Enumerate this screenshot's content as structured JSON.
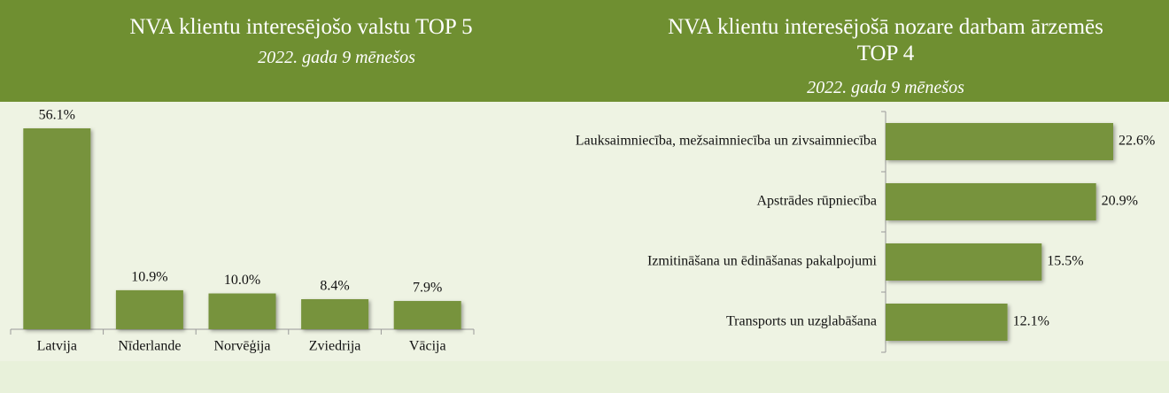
{
  "chart_data": [
    {
      "type": "bar",
      "title": "NVA klientu interesējošo valstu TOP 5",
      "subtitle": "2022. gada 9 mēnešos",
      "categories": [
        "Latvija",
        "Nīderlande",
        "Norvēģija",
        "Zviedrija",
        "Vācija"
      ],
      "values": [
        56.1,
        10.9,
        10.0,
        8.4,
        7.9
      ],
      "value_labels": [
        "56.1%",
        "10.9%",
        "10.0%",
        "8.4%",
        "7.9%"
      ],
      "color": "#77933c"
    },
    {
      "type": "hbar",
      "title": "NVA klientu interesējošā nozare darbam ārzemēs TOP 4",
      "subtitle": "2022. gada 9 mēnešos",
      "categories": [
        "Lauksaimniecība, mežsaimniecība un zivsaimniecība",
        "Apstrādes rūpniecība",
        "Izmitināšana un ēdināšanas pakalpojumi",
        "Transports un uzglabāšana"
      ],
      "values": [
        22.6,
        20.9,
        15.5,
        12.1
      ],
      "value_labels": [
        "22.6%",
        "20.9%",
        "15.5%",
        "12.1%"
      ],
      "color": "#77933c"
    }
  ]
}
